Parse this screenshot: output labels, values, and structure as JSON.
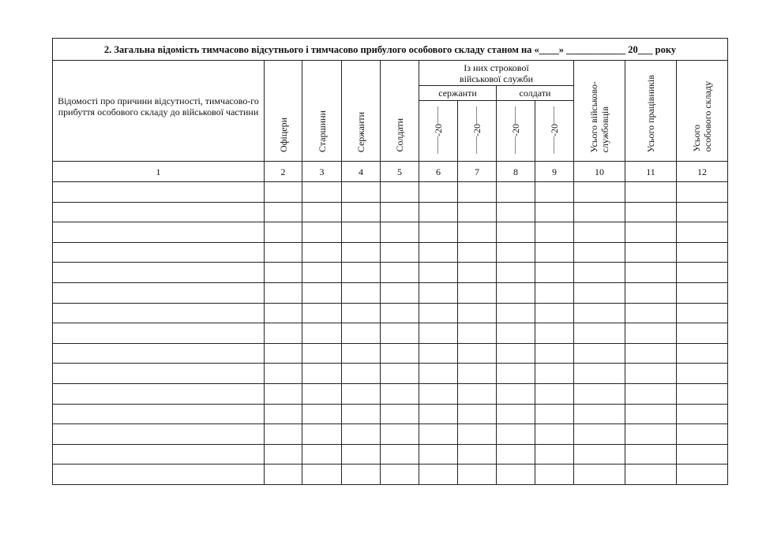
{
  "title": "2. Загальна відомість тимчасово відсутнього і тимчасово прибулого особового складу станом на «____» ____________ 20___ року",
  "headers": {
    "col1": "Відомості про причини відсутності, тимчасово-го прибуття особового складу до військової частини",
    "col2": "Офіцери",
    "col3": "Старшини",
    "col4": "Сержанти",
    "col5": "Солдати",
    "group": "Із них строкової військової служби",
    "sergeants": "сержанти",
    "soldiers": "солдати",
    "year": "-20",
    "col10": "Усього військово-\nслужбовців",
    "col11": "Усього працівників",
    "col12": "Усього\nособового складу"
  },
  "numbers": [
    "1",
    "2",
    "3",
    "4",
    "5",
    "6",
    "7",
    "8",
    "9",
    "10",
    "11",
    "12"
  ],
  "row_count": 15
}
